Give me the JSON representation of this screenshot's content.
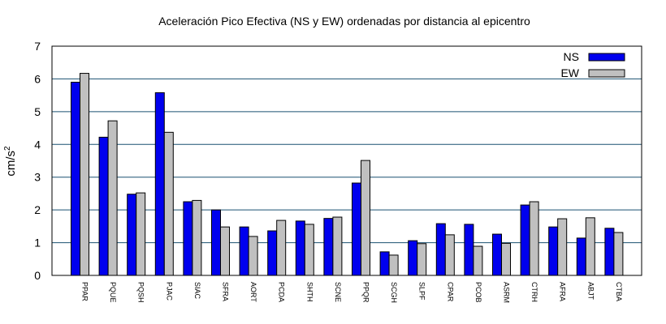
{
  "chart_data": {
    "type": "bar",
    "title": "Aceleración Pico Efectiva (NS y EW) ordenadas por distancia al epicentro",
    "ylabel_base": "cm/s",
    "ylabel_exp": "2",
    "xlabel": "",
    "ylim": [
      0,
      7
    ],
    "yticks": [
      "0",
      "1",
      "2",
      "3",
      "4",
      "5",
      "6",
      "7"
    ],
    "grid": true,
    "legend_position": "top-right",
    "categories": [
      "PPAR",
      "PQUE",
      "PQSH",
      "PJAC",
      "SIAC",
      "SFRA",
      "AORT",
      "PCDA",
      "SHTH",
      "SCNE",
      "PPQR",
      "SCGH",
      "SLPF",
      "CPAR",
      "PCOB",
      "ASRM",
      "CTRH",
      "AFRA",
      "ABJT",
      "CTBA"
    ],
    "series": [
      {
        "name": "NS",
        "color": "#0000ee",
        "values": [
          5.9,
          4.22,
          2.48,
          5.58,
          2.25,
          2.0,
          1.48,
          1.36,
          1.66,
          1.74,
          2.82,
          0.72,
          1.06,
          1.58,
          1.56,
          1.26,
          2.15,
          1.48,
          1.14,
          1.44
        ]
      },
      {
        "name": "EW",
        "color": "#c0c0c0",
        "values": [
          6.17,
          4.72,
          2.52,
          4.37,
          2.29,
          1.48,
          1.19,
          1.68,
          1.56,
          1.78,
          3.51,
          0.62,
          0.97,
          1.24,
          0.89,
          0.98,
          2.25,
          1.73,
          1.76,
          1.31
        ]
      }
    ]
  }
}
